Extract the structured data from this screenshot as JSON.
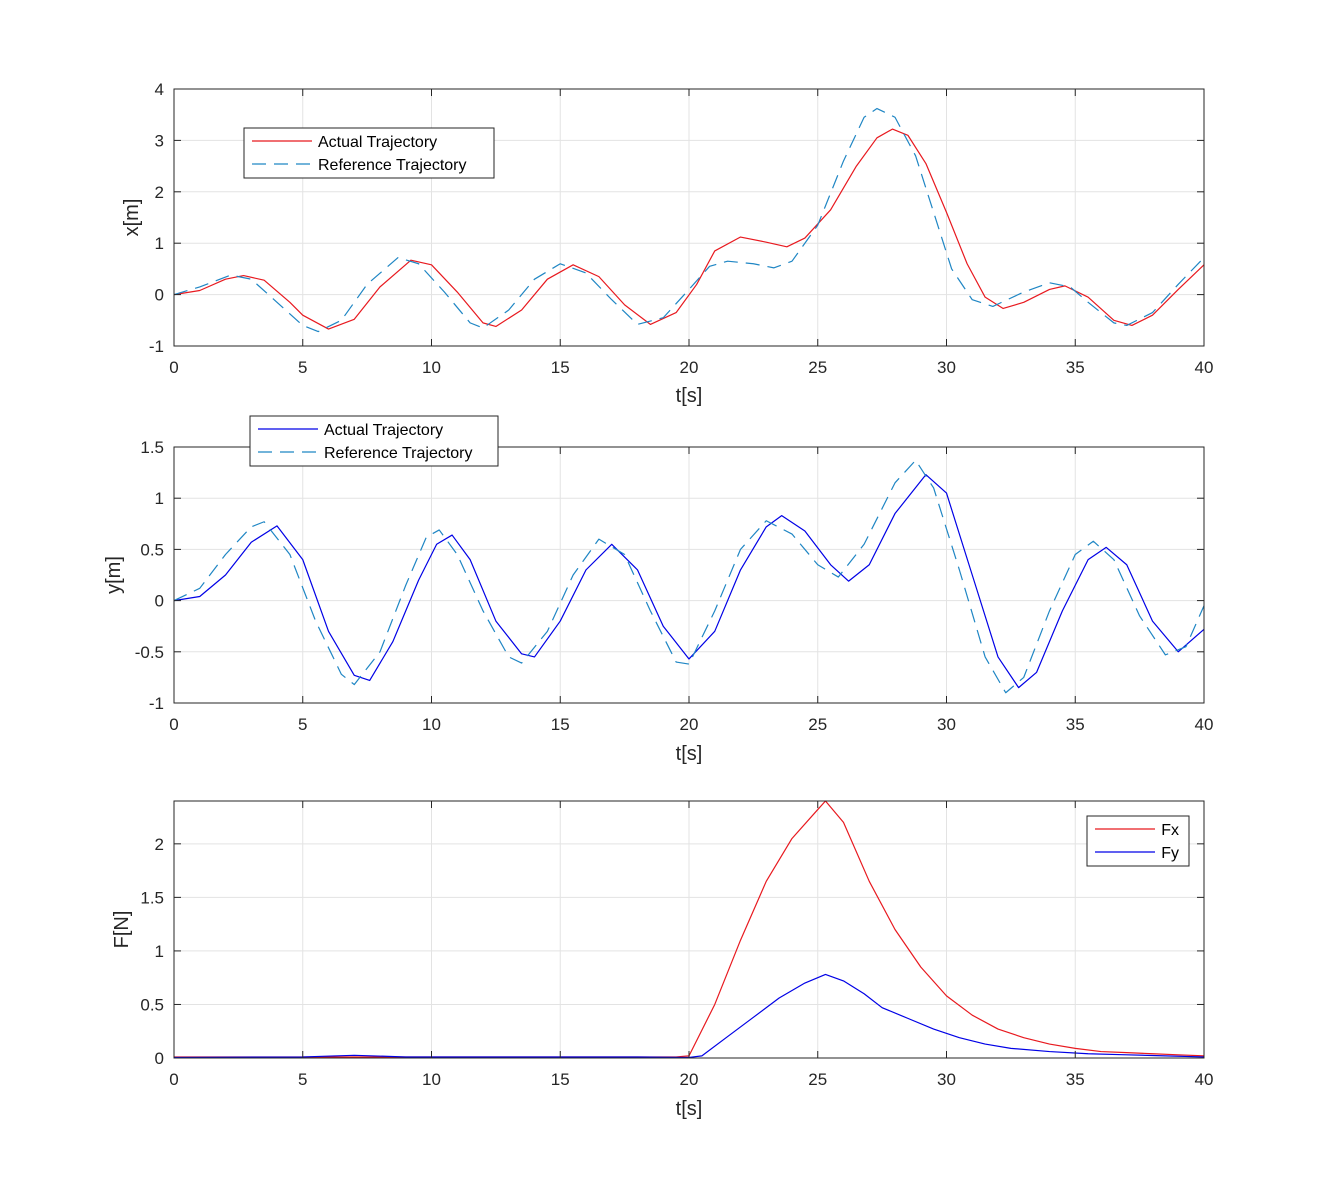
{
  "chart_data": [
    {
      "type": "line",
      "xlabel": "t[s]",
      "ylabel": "x[m]",
      "xlim": [
        0,
        40
      ],
      "ylim": [
        -1,
        4
      ],
      "xticks": [
        0,
        5,
        10,
        15,
        20,
        25,
        30,
        35,
        40
      ],
      "yticks": [
        -1,
        0,
        1,
        2,
        3,
        4
      ],
      "grid": true,
      "legend_position": "top-left",
      "series": [
        {
          "name": "Actual Trajectory",
          "color": "#e8191f",
          "style": "solid",
          "points": [
            [
              0,
              0
            ],
            [
              1,
              0.08
            ],
            [
              2,
              0.3
            ],
            [
              2.7,
              0.37
            ],
            [
              3.5,
              0.28
            ],
            [
              4.5,
              -0.15
            ],
            [
              5,
              -0.4
            ],
            [
              6,
              -0.67
            ],
            [
              7,
              -0.48
            ],
            [
              8,
              0.15
            ],
            [
              9.2,
              0.67
            ],
            [
              10,
              0.58
            ],
            [
              11,
              0.05
            ],
            [
              12,
              -0.55
            ],
            [
              12.5,
              -0.62
            ],
            [
              13.5,
              -0.3
            ],
            [
              14.5,
              0.3
            ],
            [
              15.5,
              0.58
            ],
            [
              16.5,
              0.35
            ],
            [
              17.5,
              -0.2
            ],
            [
              18.5,
              -0.58
            ],
            [
              19.5,
              -0.35
            ],
            [
              20.3,
              0.2
            ],
            [
              21,
              0.85
            ],
            [
              22,
              1.12
            ],
            [
              23,
              1.02
            ],
            [
              23.8,
              0.93
            ],
            [
              24.5,
              1.1
            ],
            [
              25.5,
              1.65
            ],
            [
              26.5,
              2.5
            ],
            [
              27.3,
              3.05
            ],
            [
              27.9,
              3.22
            ],
            [
              28.5,
              3.1
            ],
            [
              29.2,
              2.55
            ],
            [
              30,
              1.6
            ],
            [
              30.8,
              0.6
            ],
            [
              31.5,
              -0.05
            ],
            [
              32.2,
              -0.27
            ],
            [
              33,
              -0.15
            ],
            [
              34,
              0.1
            ],
            [
              34.6,
              0.17
            ],
            [
              35.5,
              -0.05
            ],
            [
              36.5,
              -0.5
            ],
            [
              37.2,
              -0.6
            ],
            [
              38,
              -0.4
            ],
            [
              39,
              0.1
            ],
            [
              40,
              0.58
            ]
          ]
        },
        {
          "name": "Reference Trajectory",
          "color": "#1f86c4",
          "style": "dashed",
          "points": [
            [
              0,
              0
            ],
            [
              1,
              0.15
            ],
            [
              2.2,
              0.38
            ],
            [
              3,
              0.3
            ],
            [
              4,
              -0.15
            ],
            [
              5,
              -0.6
            ],
            [
              5.6,
              -0.72
            ],
            [
              6.5,
              -0.5
            ],
            [
              7.5,
              0.2
            ],
            [
              8.7,
              0.72
            ],
            [
              9.5,
              0.6
            ],
            [
              10.5,
              0.05
            ],
            [
              11.5,
              -0.55
            ],
            [
              12,
              -0.65
            ],
            [
              13,
              -0.3
            ],
            [
              14,
              0.3
            ],
            [
              15,
              0.6
            ],
            [
              16,
              0.42
            ],
            [
              17,
              -0.1
            ],
            [
              18,
              -0.58
            ],
            [
              19,
              -0.45
            ],
            [
              20,
              0.1
            ],
            [
              20.8,
              0.55
            ],
            [
              21.5,
              0.65
            ],
            [
              22.5,
              0.6
            ],
            [
              23.3,
              0.52
            ],
            [
              24,
              0.65
            ],
            [
              25,
              1.35
            ],
            [
              26,
              2.6
            ],
            [
              26.8,
              3.45
            ],
            [
              27.3,
              3.62
            ],
            [
              28,
              3.45
            ],
            [
              28.8,
              2.7
            ],
            [
              29.5,
              1.6
            ],
            [
              30.2,
              0.5
            ],
            [
              31,
              -0.1
            ],
            [
              31.8,
              -0.23
            ],
            [
              33,
              0.05
            ],
            [
              34,
              0.23
            ],
            [
              34.8,
              0.15
            ],
            [
              35.5,
              -0.15
            ],
            [
              36.5,
              -0.55
            ],
            [
              37,
              -0.6
            ],
            [
              38,
              -0.35
            ],
            [
              39,
              0.2
            ],
            [
              40,
              0.72
            ]
          ]
        }
      ]
    },
    {
      "type": "line",
      "xlabel": "t[s]",
      "ylabel": "y[m]",
      "xlim": [
        0,
        40
      ],
      "ylim": [
        -1,
        1.5
      ],
      "xticks": [
        0,
        5,
        10,
        15,
        20,
        25,
        30,
        35,
        40
      ],
      "yticks": [
        -1,
        -0.5,
        0,
        0.5,
        1,
        1.5
      ],
      "grid": true,
      "legend_position": "top-left (above axes)",
      "series": [
        {
          "name": "Actual Trajectory",
          "color": "#0000e6",
          "style": "solid",
          "points": [
            [
              0,
              0
            ],
            [
              1,
              0.04
            ],
            [
              2,
              0.25
            ],
            [
              3,
              0.57
            ],
            [
              4,
              0.73
            ],
            [
              5,
              0.4
            ],
            [
              6,
              -0.3
            ],
            [
              7,
              -0.73
            ],
            [
              7.6,
              -0.78
            ],
            [
              8.5,
              -0.4
            ],
            [
              9.5,
              0.2
            ],
            [
              10.2,
              0.55
            ],
            [
              10.8,
              0.64
            ],
            [
              11.5,
              0.4
            ],
            [
              12.5,
              -0.2
            ],
            [
              13.5,
              -0.52
            ],
            [
              14,
              -0.55
            ],
            [
              15,
              -0.2
            ],
            [
              16,
              0.3
            ],
            [
              17,
              0.55
            ],
            [
              18,
              0.3
            ],
            [
              19,
              -0.25
            ],
            [
              20,
              -0.57
            ],
            [
              21,
              -0.3
            ],
            [
              22,
              0.3
            ],
            [
              23,
              0.72
            ],
            [
              23.6,
              0.83
            ],
            [
              24.5,
              0.68
            ],
            [
              25.5,
              0.35
            ],
            [
              26.2,
              0.19
            ],
            [
              27,
              0.35
            ],
            [
              28,
              0.85
            ],
            [
              29.2,
              1.23
            ],
            [
              30,
              1.05
            ],
            [
              31,
              0.25
            ],
            [
              32,
              -0.55
            ],
            [
              32.8,
              -0.85
            ],
            [
              33.5,
              -0.7
            ],
            [
              34.5,
              -0.1
            ],
            [
              35.5,
              0.4
            ],
            [
              36.2,
              0.52
            ],
            [
              37,
              0.35
            ],
            [
              38,
              -0.2
            ],
            [
              39,
              -0.5
            ],
            [
              40,
              -0.28
            ]
          ]
        },
        {
          "name": "Reference Trajectory",
          "color": "#1f86c4",
          "style": "dashed",
          "points": [
            [
              0,
              0
            ],
            [
              1,
              0.12
            ],
            [
              2,
              0.45
            ],
            [
              3,
              0.72
            ],
            [
              3.5,
              0.77
            ],
            [
              4.5,
              0.45
            ],
            [
              5.5,
              -0.2
            ],
            [
              6.5,
              -0.72
            ],
            [
              7,
              -0.82
            ],
            [
              8,
              -0.5
            ],
            [
              9,
              0.15
            ],
            [
              9.8,
              0.62
            ],
            [
              10.3,
              0.69
            ],
            [
              11,
              0.45
            ],
            [
              12,
              -0.1
            ],
            [
              13,
              -0.55
            ],
            [
              13.5,
              -0.61
            ],
            [
              14.5,
              -0.3
            ],
            [
              15.5,
              0.25
            ],
            [
              16.5,
              0.6
            ],
            [
              17.5,
              0.45
            ],
            [
              18.5,
              -0.1
            ],
            [
              19.5,
              -0.6
            ],
            [
              20,
              -0.62
            ],
            [
              21,
              -0.1
            ],
            [
              22,
              0.5
            ],
            [
              23,
              0.78
            ],
            [
              24,
              0.65
            ],
            [
              25,
              0.35
            ],
            [
              25.8,
              0.23
            ],
            [
              26.8,
              0.55
            ],
            [
              28,
              1.15
            ],
            [
              28.8,
              1.37
            ],
            [
              29.5,
              1.1
            ],
            [
              30.5,
              0.3
            ],
            [
              31.5,
              -0.55
            ],
            [
              32.3,
              -0.9
            ],
            [
              33,
              -0.75
            ],
            [
              34,
              -0.1
            ],
            [
              35,
              0.45
            ],
            [
              35.7,
              0.58
            ],
            [
              36.5,
              0.4
            ],
            [
              37.5,
              -0.15
            ],
            [
              38.5,
              -0.53
            ],
            [
              39.3,
              -0.45
            ],
            [
              40,
              -0.05
            ]
          ]
        }
      ]
    },
    {
      "type": "line",
      "xlabel": "t[s]",
      "ylabel": "F[N]",
      "xlim": [
        0,
        40
      ],
      "ylim": [
        0,
        2.4
      ],
      "xticks": [
        0,
        5,
        10,
        15,
        20,
        25,
        30,
        35,
        40
      ],
      "yticks": [
        0,
        0.5,
        1,
        1.5,
        2
      ],
      "grid": true,
      "legend_position": "top-right",
      "series": [
        {
          "name": "Fx",
          "color": "#e8191f",
          "style": "solid",
          "points": [
            [
              0,
              0.01
            ],
            [
              5,
              0.01
            ],
            [
              10,
              0.01
            ],
            [
              15,
              0.01
            ],
            [
              19.5,
              0.01
            ],
            [
              20,
              0.02
            ],
            [
              21,
              0.5
            ],
            [
              22,
              1.1
            ],
            [
              23,
              1.65
            ],
            [
              24,
              2.05
            ],
            [
              25,
              2.32
            ],
            [
              25.3,
              2.4
            ],
            [
              26,
              2.2
            ],
            [
              27,
              1.65
            ],
            [
              28,
              1.2
            ],
            [
              29,
              0.85
            ],
            [
              30,
              0.58
            ],
            [
              31,
              0.4
            ],
            [
              32,
              0.27
            ],
            [
              33,
              0.19
            ],
            [
              34,
              0.13
            ],
            [
              35,
              0.09
            ],
            [
              36,
              0.06
            ],
            [
              37,
              0.05
            ],
            [
              38,
              0.04
            ],
            [
              39,
              0.03
            ],
            [
              40,
              0.02
            ]
          ]
        },
        {
          "name": "Fy",
          "color": "#0000e6",
          "style": "solid",
          "points": [
            [
              0,
              0.005
            ],
            [
              5,
              0.01
            ],
            [
              7,
              0.025
            ],
            [
              9,
              0.01
            ],
            [
              12,
              0.01
            ],
            [
              15,
              0.01
            ],
            [
              18,
              0.01
            ],
            [
              20,
              0.005
            ],
            [
              20.5,
              0.02
            ],
            [
              21.5,
              0.2
            ],
            [
              22.5,
              0.38
            ],
            [
              23.5,
              0.56
            ],
            [
              24.5,
              0.7
            ],
            [
              25.3,
              0.78
            ],
            [
              26,
              0.72
            ],
            [
              26.8,
              0.6
            ],
            [
              27.5,
              0.47
            ],
            [
              28.5,
              0.37
            ],
            [
              29.5,
              0.27
            ],
            [
              30.5,
              0.19
            ],
            [
              31.5,
              0.13
            ],
            [
              32.5,
              0.09
            ],
            [
              34,
              0.06
            ],
            [
              35.5,
              0.04
            ],
            [
              37,
              0.03
            ],
            [
              38.5,
              0.02
            ],
            [
              40,
              0.01
            ]
          ]
        }
      ]
    }
  ]
}
